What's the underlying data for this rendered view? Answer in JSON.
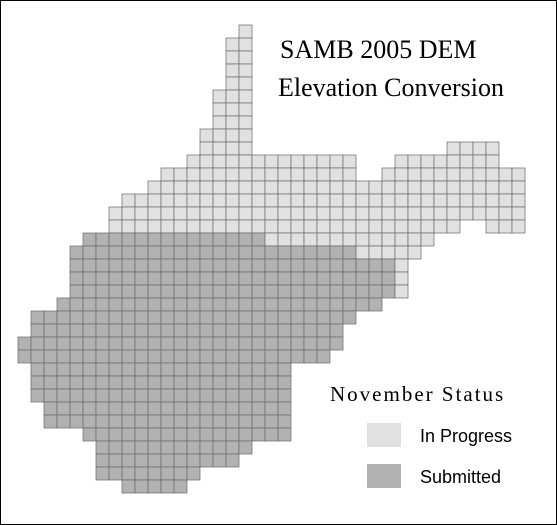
{
  "title": {
    "line1": "SAMB 2005 DEM",
    "line2": "Elevation Conversion"
  },
  "legend": {
    "title": "November Status",
    "items": [
      {
        "label": "In Progress"
      },
      {
        "label": "Submitted"
      }
    ]
  }
}
